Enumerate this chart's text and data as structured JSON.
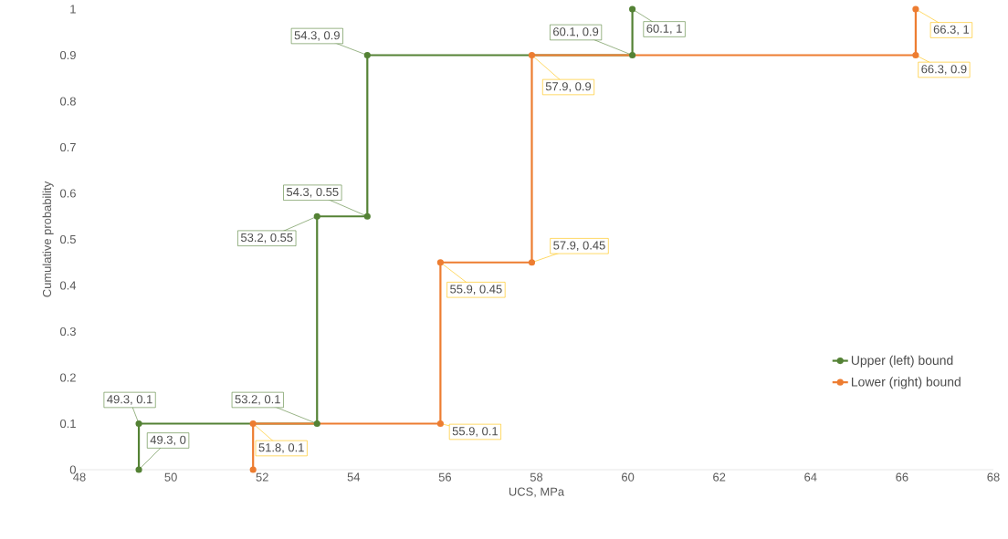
{
  "chart_data": {
    "type": "line",
    "xlabel": "UCS, MPa",
    "ylabel": "Cumulative probability",
    "xlim": [
      48,
      68
    ],
    "xticks": [
      48,
      50,
      52,
      54,
      56,
      58,
      60,
      62,
      64,
      66,
      68
    ],
    "ylim": [
      0,
      1
    ],
    "yticks": [
      0,
      0.1,
      0.2,
      0.3,
      0.4,
      0.5,
      0.6,
      0.7,
      0.8,
      0.9,
      1
    ],
    "legend": "bottom right",
    "marker": "circle",
    "line_style": "solid",
    "series": [
      {
        "name": "Upper (left) bound",
        "color": "#548235",
        "x": [
          49.3,
          49.3,
          53.2,
          53.2,
          54.3,
          54.3,
          60.1,
          60.1
        ],
        "values": [
          0,
          0.1,
          0.1,
          0.55,
          0.55,
          0.9,
          0.9,
          1
        ],
        "value_labels": [
          "49.3, 0",
          "49.3, 0.1",
          "53.2, 0.1",
          "53.2, 0.55",
          "54.3, 0.55",
          "54.3, 0.9",
          "60.1, 0.9",
          "60.1, 1"
        ]
      },
      {
        "name": "Lower (right) bound",
        "color": "#ed7d31",
        "x": [
          51.8,
          51.8,
          55.9,
          55.9,
          57.9,
          57.9,
          66.3,
          66.3
        ],
        "values": [
          0,
          0.1,
          0.1,
          0.45,
          0.45,
          0.9,
          0.9,
          1
        ],
        "value_labels": [
          null,
          "51.8, 0.1",
          "55.9, 0.1",
          "55.9, 0.45",
          "57.9, 0.45",
          "57.9, 0.9",
          "66.3, 0.9",
          "66.3, 1"
        ]
      }
    ]
  }
}
